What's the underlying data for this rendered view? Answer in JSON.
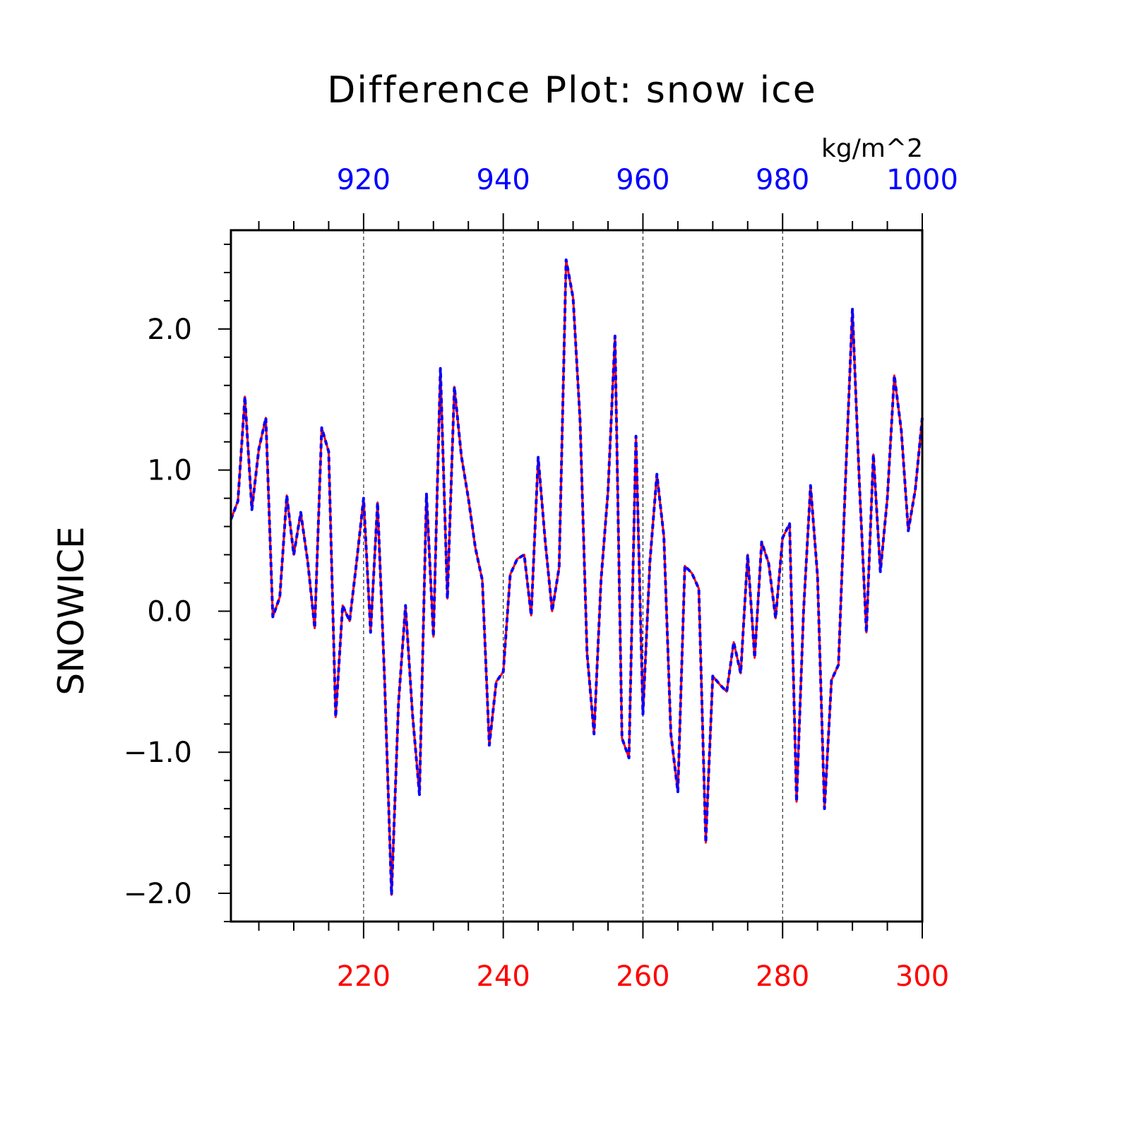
{
  "chart_data": {
    "type": "line",
    "title": "Difference Plot: snow ice",
    "units": "kg/m^2",
    "ylabel": "SNOWICE",
    "xlabel": "",
    "ylim": [
      -2.2,
      2.7
    ],
    "xlim_bottom": [
      201,
      300
    ],
    "xlim_top": [
      901,
      1000
    ],
    "y_ticks": [
      2.0,
      1.0,
      0.0,
      -1.0,
      -2.0
    ],
    "y_tick_labels": [
      "2.0",
      "1.0",
      "0.0",
      "−1.0",
      "−2.0"
    ],
    "x_bottom_ticks": [
      220,
      240,
      260,
      280,
      300
    ],
    "x_bottom_tick_labels": [
      "220",
      "240",
      "260",
      "280",
      "300"
    ],
    "x_top_ticks": [
      920,
      940,
      960,
      980,
      1000
    ],
    "x_top_tick_labels": [
      "920",
      "940",
      "960",
      "980",
      "1000"
    ],
    "grid": "vertical dashed at major x ticks",
    "colors": {
      "bottom_axis": "#ff0000",
      "top_axis": "#0000ff",
      "series_solid": "#ff0000",
      "series_dashed": "#0000ff"
    },
    "series": [
      {
        "axis": "bottom",
        "style": "solid",
        "x": [
          201,
          202,
          203,
          204,
          205,
          206,
          207,
          208,
          209,
          210,
          211,
          212,
          213,
          214,
          215,
          216,
          217,
          218,
          219,
          220,
          221,
          222,
          223,
          224,
          225,
          226,
          227,
          228,
          229,
          230,
          231,
          232,
          233,
          234,
          235,
          236,
          237,
          238,
          239,
          240,
          241,
          242,
          243,
          244,
          245,
          246,
          247,
          248,
          249,
          250,
          251,
          252,
          253,
          254,
          255,
          256,
          257,
          258,
          259,
          260,
          261,
          262,
          263,
          264,
          265,
          266,
          267,
          268,
          269,
          270,
          271,
          272,
          273,
          274,
          275,
          276,
          277,
          278,
          279,
          280,
          281,
          282,
          283,
          284,
          285,
          286,
          287,
          288,
          289,
          290,
          291,
          292,
          293,
          294,
          295,
          296,
          297,
          298,
          299,
          300
        ],
        "y": [
          0.65,
          0.78,
          1.52,
          0.72,
          1.15,
          1.37,
          -0.04,
          0.1,
          0.82,
          0.4,
          0.7,
          0.35,
          -0.12,
          1.3,
          1.13,
          -0.75,
          0.04,
          -0.07,
          0.35,
          0.8,
          -0.15,
          0.77,
          -0.48,
          -2.01,
          -0.65,
          0.04,
          -0.73,
          -1.3,
          0.83,
          -0.18,
          1.72,
          0.09,
          1.59,
          1.1,
          0.8,
          0.45,
          0.22,
          -0.95,
          -0.5,
          -0.43,
          0.26,
          0.37,
          0.4,
          -0.03,
          1.09,
          0.5,
          0.0,
          0.31,
          2.49,
          2.22,
          1.35,
          -0.3,
          -0.87,
          0.22,
          0.85,
          1.95,
          -0.9,
          -1.04,
          1.24,
          -0.73,
          0.35,
          0.97,
          0.53,
          -0.87,
          -1.28,
          0.32,
          0.27,
          0.16,
          -1.64,
          -0.46,
          -0.52,
          -0.57,
          -0.22,
          -0.44,
          0.4,
          -0.33,
          0.49,
          0.34,
          -0.05,
          0.52,
          0.62,
          -1.35,
          0.0,
          0.89,
          0.25,
          -1.4,
          -0.49,
          -0.38,
          0.92,
          2.14,
          0.9,
          -0.15,
          1.11,
          0.28,
          0.8,
          1.67,
          1.28,
          0.57,
          0.86,
          1.37
        ]
      },
      {
        "axis": "top",
        "style": "dashed",
        "x": [
          901,
          902,
          903,
          904,
          905,
          906,
          907,
          908,
          909,
          910,
          911,
          912,
          913,
          914,
          915,
          916,
          917,
          918,
          919,
          920,
          921,
          922,
          923,
          924,
          925,
          926,
          927,
          928,
          929,
          930,
          931,
          932,
          933,
          934,
          935,
          936,
          937,
          938,
          939,
          940,
          941,
          942,
          943,
          944,
          945,
          946,
          947,
          948,
          949,
          950,
          951,
          952,
          953,
          954,
          955,
          956,
          957,
          958,
          959,
          960,
          961,
          962,
          963,
          964,
          965,
          966,
          967,
          968,
          969,
          970,
          971,
          972,
          973,
          974,
          975,
          976,
          977,
          978,
          979,
          980,
          981,
          982,
          983,
          984,
          985,
          986,
          987,
          988,
          989,
          990,
          991,
          992,
          993,
          994,
          995,
          996,
          997,
          998,
          999,
          1000
        ],
        "y": [
          0.65,
          0.78,
          1.52,
          0.72,
          1.15,
          1.37,
          -0.04,
          0.1,
          0.82,
          0.4,
          0.7,
          0.35,
          -0.12,
          1.3,
          1.13,
          -0.75,
          0.04,
          -0.07,
          0.35,
          0.8,
          -0.15,
          0.77,
          -0.48,
          -2.01,
          -0.65,
          0.04,
          -0.73,
          -1.3,
          0.83,
          -0.18,
          1.72,
          0.09,
          1.59,
          1.1,
          0.8,
          0.45,
          0.22,
          -0.95,
          -0.5,
          -0.43,
          0.26,
          0.37,
          0.4,
          -0.03,
          1.09,
          0.5,
          0.0,
          0.31,
          2.49,
          2.22,
          1.35,
          -0.3,
          -0.87,
          0.22,
          0.85,
          1.95,
          -0.9,
          -1.04,
          1.24,
          -0.73,
          0.35,
          0.97,
          0.53,
          -0.87,
          -1.28,
          0.32,
          0.27,
          0.16,
          -1.64,
          -0.46,
          -0.52,
          -0.57,
          -0.22,
          -0.44,
          0.4,
          -0.33,
          0.49,
          0.34,
          -0.05,
          0.52,
          0.62,
          -1.35,
          0.0,
          0.89,
          0.25,
          -1.4,
          -0.49,
          -0.38,
          0.92,
          2.14,
          0.9,
          -0.15,
          1.11,
          0.28,
          0.8,
          1.67,
          1.28,
          0.57,
          0.86,
          1.37
        ]
      }
    ]
  }
}
